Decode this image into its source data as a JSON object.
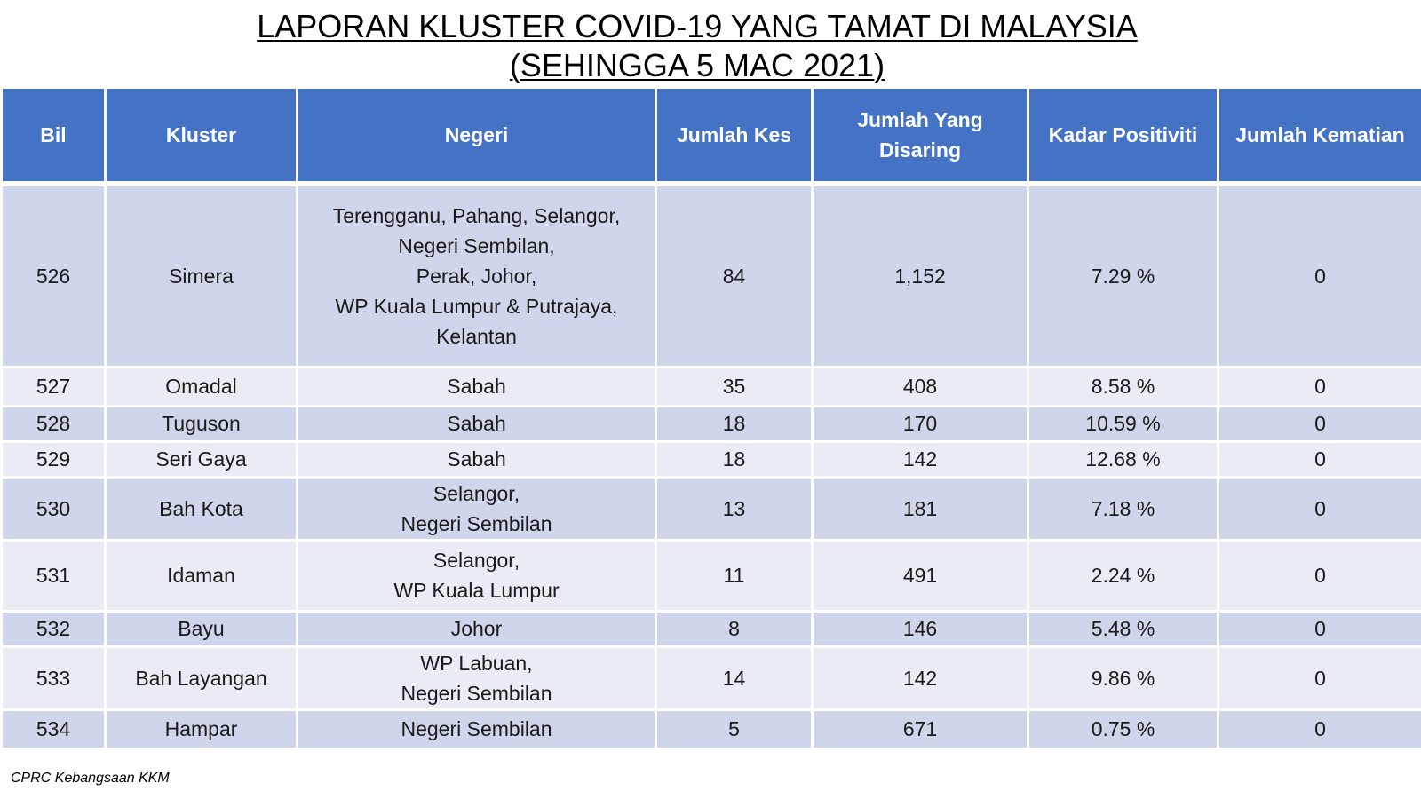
{
  "title": {
    "line1": "LAPORAN KLUSTER COVID-19 YANG TAMAT DI MALAYSIA",
    "line2": "(SEHINGGA 5 MAC 2021)"
  },
  "table": {
    "headers": {
      "bil": "Bil",
      "kluster": "Kluster",
      "negeri": "Negeri",
      "jumlah_kes": "Jumlah Kes",
      "jumlah_disaring_1": "Jumlah Yang",
      "jumlah_disaring_2": "Disaring",
      "kadar_positiviti": "Kadar Positiviti",
      "jumlah_kematian": "Jumlah Kematian"
    },
    "rows": [
      {
        "bil": "526",
        "kluster": "Simera",
        "negeri": [
          "Terengganu, Pahang, Selangor,",
          "Negeri Sembilan,",
          "Perak, Johor,",
          "WP Kuala Lumpur & Putrajaya,",
          "Kelantan"
        ],
        "kes": "84",
        "disaring": "1,152",
        "positiviti": "7.29 %",
        "kematian": "0"
      },
      {
        "bil": "527",
        "kluster": "Omadal",
        "negeri": [
          "Sabah"
        ],
        "kes": "35",
        "disaring": "408",
        "positiviti": "8.58 %",
        "kematian": "0"
      },
      {
        "bil": "528",
        "kluster": "Tuguson",
        "negeri": [
          "Sabah"
        ],
        "kes": "18",
        "disaring": "170",
        "positiviti": "10.59 %",
        "kematian": "0"
      },
      {
        "bil": "529",
        "kluster": "Seri Gaya",
        "negeri": [
          "Sabah"
        ],
        "kes": "18",
        "disaring": "142",
        "positiviti": "12.68 %",
        "kematian": "0"
      },
      {
        "bil": "530",
        "kluster": "Bah Kota",
        "negeri": [
          "Selangor,",
          "Negeri Sembilan"
        ],
        "kes": "13",
        "disaring": "181",
        "positiviti": "7.18 %",
        "kematian": "0"
      },
      {
        "bil": "531",
        "kluster": "Idaman",
        "negeri": [
          "Selangor,",
          "WP Kuala Lumpur"
        ],
        "kes": "11",
        "disaring": "491",
        "positiviti": "2.24 %",
        "kematian": "0"
      },
      {
        "bil": "532",
        "kluster": "Bayu",
        "negeri": [
          "Johor"
        ],
        "kes": "8",
        "disaring": "146",
        "positiviti": "5.48 %",
        "kematian": "0"
      },
      {
        "bil": "533",
        "kluster": "Bah Layangan",
        "negeri": [
          "WP Labuan,",
          "Negeri Sembilan"
        ],
        "kes": "14",
        "disaring": "142",
        "positiviti": "9.86 %",
        "kematian": "0"
      },
      {
        "bil": "534",
        "kluster": "Hampar",
        "negeri": [
          "Negeri Sembilan"
        ],
        "kes": "5",
        "disaring": "671",
        "positiviti": "0.75 %",
        "kematian": "0"
      }
    ]
  },
  "footer": "CPRC Kebangsaan KKM",
  "colors": {
    "header_bg": "#4472c4",
    "row_dark": "#cfd5ea",
    "row_light": "#e9ebf5"
  }
}
